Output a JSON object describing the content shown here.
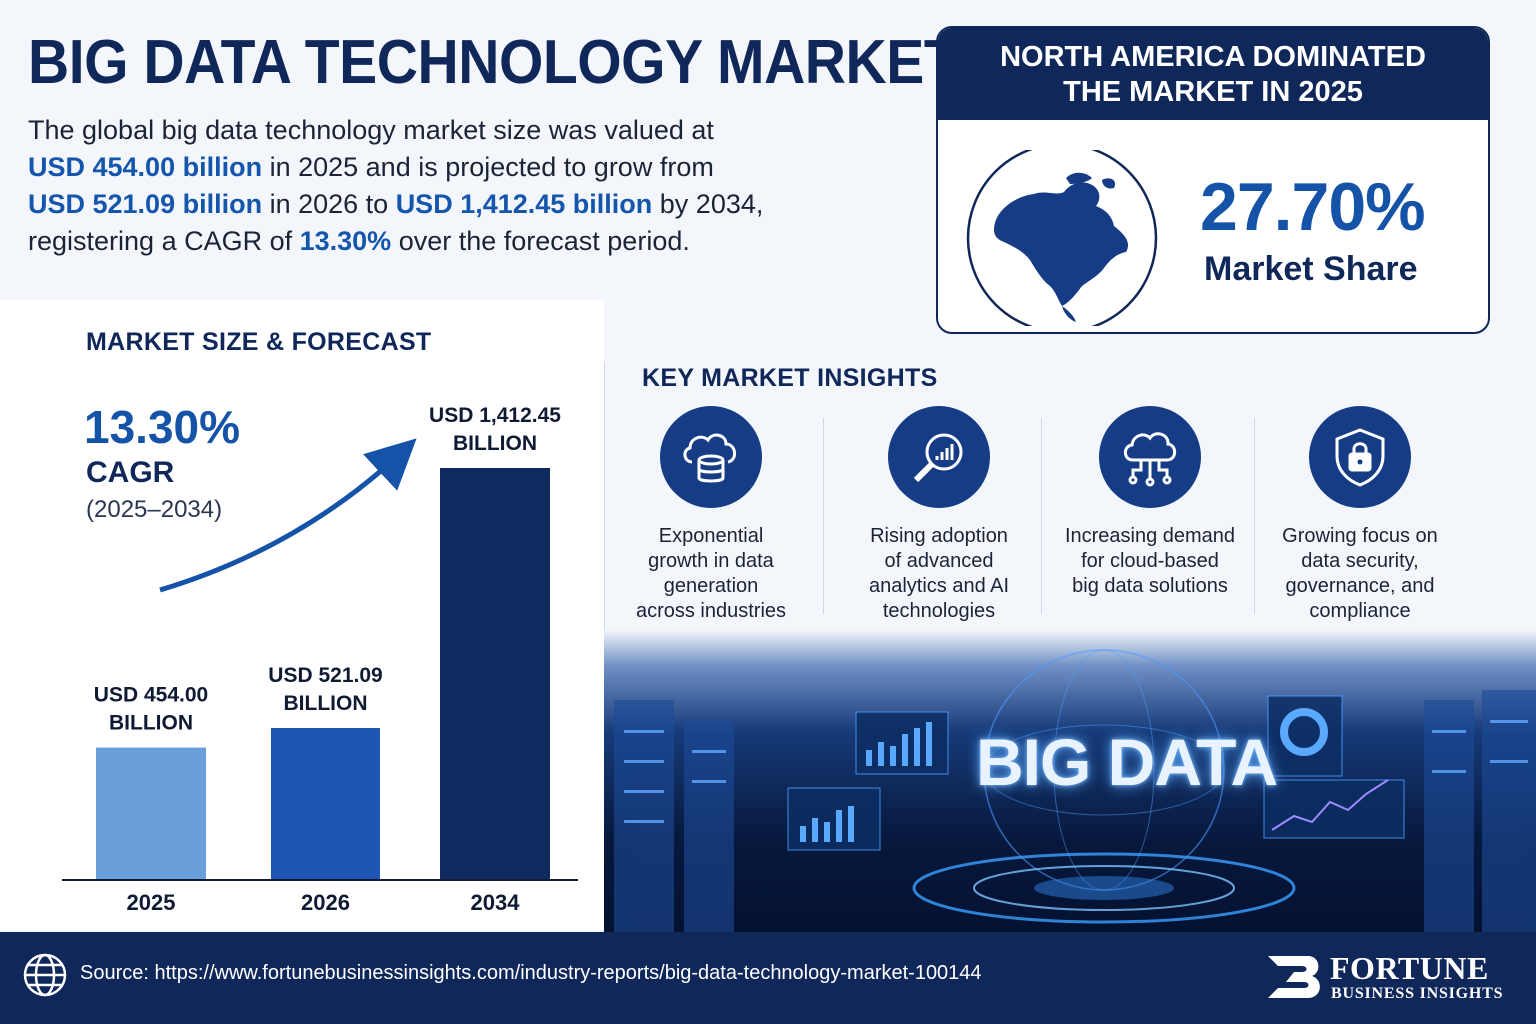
{
  "header": {
    "title": "BIG DATA TECHNOLOGY MARKET",
    "intro": {
      "p1": "The global big data technology market size was valued at",
      "v2025": "USD 454.00 billion",
      "p2": " in 2025 and is projected to grow from",
      "v2026": "USD 521.09 billion",
      "p3": " in 2026 to ",
      "v2034": "USD 1,412.45 billion",
      "p4": " by 2034,",
      "p5": "registering a CAGR of ",
      "cagr": "13.30%",
      "p6": " over the forecast period."
    }
  },
  "region": {
    "heading_line1": "NORTH AMERICA DOMINATED",
    "heading_line2": "THE MARKET IN 2025",
    "share_value": "27.70%",
    "share_label": "Market Share",
    "icon": "north-america-globe-icon"
  },
  "chart_section": {
    "heading": "MARKET SIZE & FORECAST",
    "cagr_value": "13.30%",
    "cagr_label": "CAGR",
    "cagr_period": "(2025–2034)"
  },
  "chart_data": {
    "type": "bar",
    "title": "",
    "xlabel": "",
    "ylabel": "",
    "categories": [
      "2025",
      "2026",
      "2034"
    ],
    "values": [
      454.0,
      521.09,
      1412.45
    ],
    "bar_labels": [
      [
        "USD 454.00",
        "BILLION"
      ],
      [
        "USD 521.09",
        "BILLION"
      ],
      [
        "USD 1,412.45",
        "BILLION"
      ]
    ],
    "colors": [
      "#6a9fdc",
      "#1d56b4",
      "#0f2a5e"
    ],
    "ylim": [
      0,
      1412.45
    ],
    "grid": false
  },
  "insights": {
    "heading": "KEY MARKET INSIGHTS",
    "items": [
      {
        "icon": "cloud-database-icon",
        "lines": [
          "Exponential",
          "growth in data",
          "generation",
          "across industries"
        ]
      },
      {
        "icon": "magnifier-chart-icon",
        "lines": [
          "Rising adoption",
          "of advanced",
          "analytics and AI",
          "technologies"
        ]
      },
      {
        "icon": "cloud-network-icon",
        "lines": [
          "Increasing demand",
          "for cloud-based",
          "big data solutions"
        ]
      },
      {
        "icon": "shield-lock-icon",
        "lines": [
          "Growing focus on",
          "data security,",
          "governance, and",
          "compliance"
        ]
      }
    ]
  },
  "visual": {
    "text": "BIG DATA"
  },
  "footer": {
    "source": "Source: https://www.fortunebusinessinsights.com/industry-reports/big-data-technology-market-100144",
    "logo_name": "FORTUNE",
    "logo_sub": "BUSINESS INSIGHTS",
    "accent": "#10275a"
  }
}
